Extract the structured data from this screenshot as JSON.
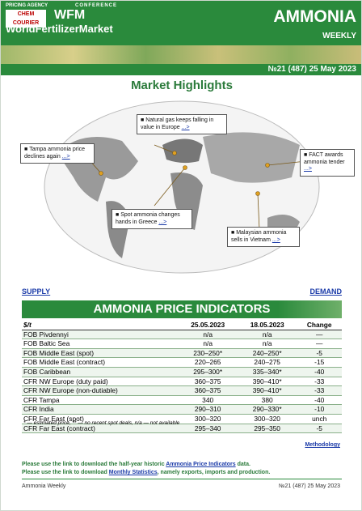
{
  "header": {
    "agency": "PRICING AGENCY",
    "logo": "CHEM COURIER",
    "conference": "CONFERENCE",
    "wfm": "WFM",
    "brand": "WorldFertilizerMarket",
    "title": "AMMONIA",
    "subtitle": "WEEKLY",
    "issue": "№21 (487) 25 May 2023"
  },
  "highlights": {
    "title": "Market Highlights",
    "callouts": [
      {
        "text": "Natural gas keeps falling in value in Europe",
        "link": "...>"
      },
      {
        "text": "Tampa ammonia price declines again",
        "link": "...>"
      },
      {
        "text": "FACT awards ammonia tender",
        "link": "...>"
      },
      {
        "text": "Spot ammonia changes hands in Greece",
        "link": "...>"
      },
      {
        "text": "Malaysian ammonia sells in Vietnam",
        "link": "...>"
      }
    ]
  },
  "nav": {
    "supply": "SUPPLY",
    "demand": "DEMAND"
  },
  "table": {
    "title": "AMMONIA PRICE INDICATORS",
    "columns": [
      "$/t",
      "25.05.2023",
      "18.05.2023",
      "Change"
    ],
    "rows": [
      [
        "FOB Pivdennyi",
        "n/a",
        "n/a",
        "—"
      ],
      [
        "FOB Baltic Sea",
        "n/a",
        "n/a",
        "—"
      ],
      [
        "FOB Middle East (spot)",
        "230–250*",
        "240–250*",
        "-5"
      ],
      [
        "FOB Middle East (contract)",
        "220–265",
        "240–275",
        "-15"
      ],
      [
        "FOB Caribbean",
        "295–300*",
        "335–340*",
        "-40"
      ],
      [
        "CFR NW Europe (duty paid)",
        "360–375",
        "390–410*",
        "-33"
      ],
      [
        "CFR NW Europe (non-dutiable)",
        "360–375",
        "390–410*",
        "-33"
      ],
      [
        "CFR Tampa",
        "340",
        "380",
        "-40"
      ],
      [
        "CFR India",
        "290–310",
        "290–330*",
        "-10"
      ],
      [
        "CFR Far East (spot)",
        "300–320",
        "300–320",
        "unch"
      ],
      [
        "CFR Far East (contract)",
        "295–340",
        "295–350",
        "-5"
      ]
    ],
    "footnote": "* — estimated price, ** — no recent spot deals, n/a — not available",
    "methodology": "Methodology"
  },
  "notes": [
    {
      "before": "Please use the link to download the half-year historic ",
      "link": "Ammonia Price Indicators",
      "after": " data."
    },
    {
      "before": "Please use the link to download ",
      "link": "Monthly Statistics",
      "after": ", namely exports, imports and production."
    }
  ],
  "footer": {
    "left": "Ammonia Weekly",
    "right": "№21 (487) 25 May 2023"
  }
}
